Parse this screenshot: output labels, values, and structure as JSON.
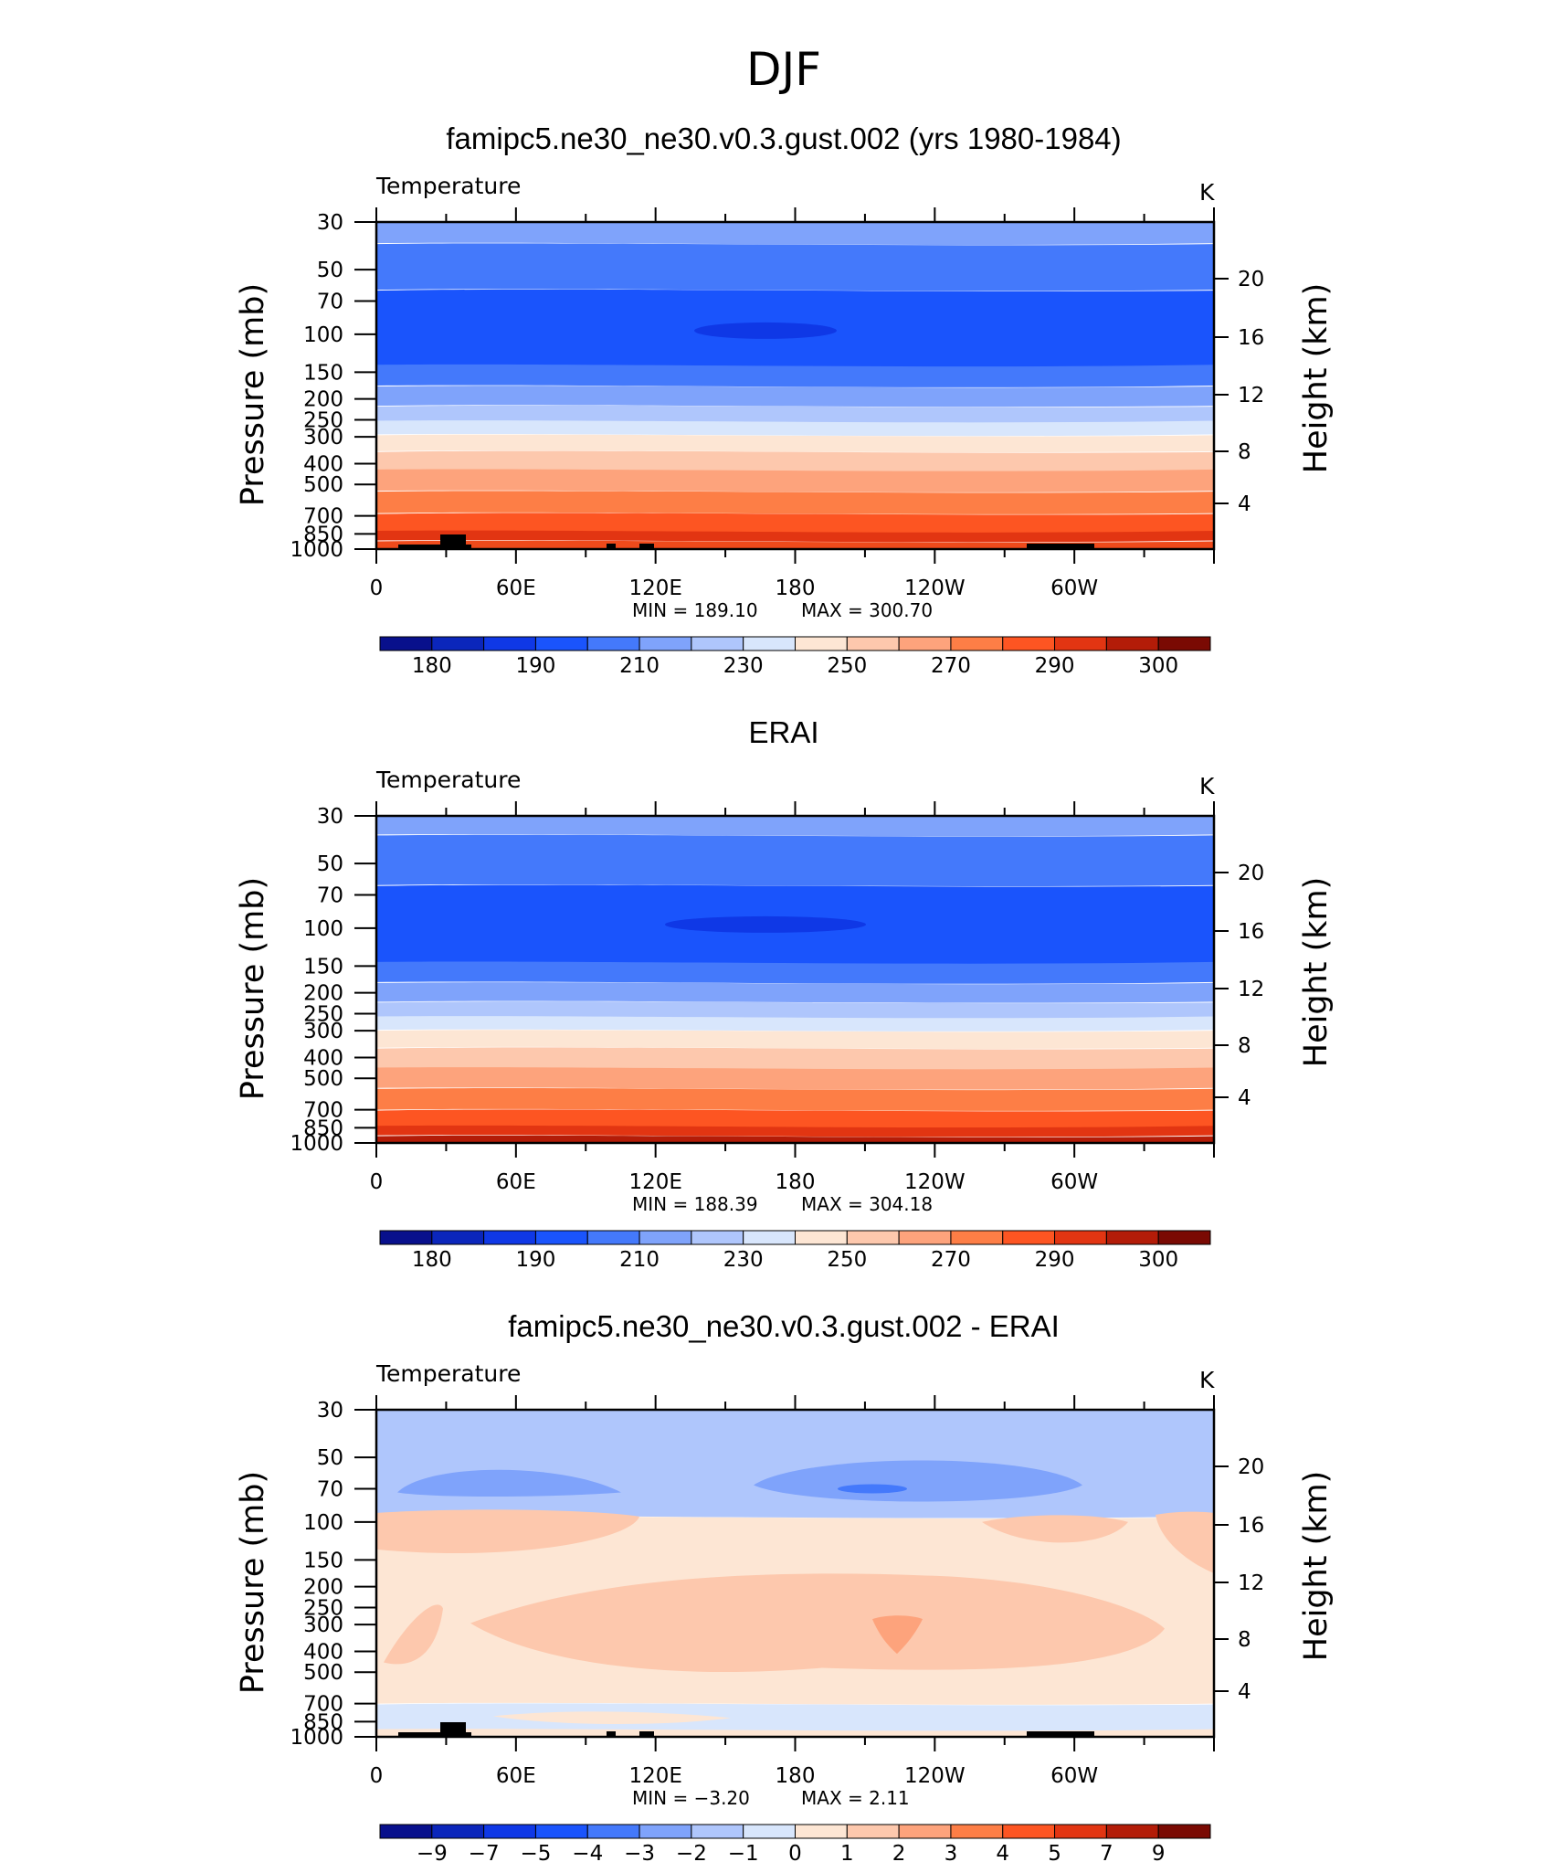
{
  "figure": {
    "title": "DJF"
  },
  "chart_data": [
    {
      "type": "heatmap",
      "title": "famipc5.ne30_ne30.v0.3.gust.002 (yrs 1980-1984)",
      "variable": "Temperature",
      "units": "K",
      "xlabel": "",
      "ylabel": "Pressure (mb)",
      "ylabel_right": "Height (km)",
      "x_ticks": [
        "0",
        "60E",
        "120E",
        "180",
        "120W",
        "60W"
      ],
      "y_ticks": [
        "30",
        "50",
        "70",
        "100",
        "150",
        "200",
        "250",
        "300",
        "400",
        "500",
        "700",
        "850",
        "1000"
      ],
      "y_ticks_right": [
        "20",
        "16",
        "12",
        "8",
        "4"
      ],
      "min_label": "MIN = 189.10",
      "max_label": "MAX = 300.70",
      "min": 189.1,
      "max": 300.7,
      "colorbar_labels": [
        "180",
        "190",
        "210",
        "230",
        "250",
        "270",
        "290",
        "300"
      ],
      "level_bands": [
        {
          "p_top": 30,
          "p_bottom": 38,
          "color": "#7fa3fb"
        },
        {
          "p_top": 38,
          "p_bottom": 62,
          "color": "#4479fb"
        },
        {
          "p_top": 62,
          "p_bottom": 140,
          "color": "#1a54fc"
        },
        {
          "p_top": 140,
          "p_bottom": 175,
          "color": "#4479fb"
        },
        {
          "p_top": 175,
          "p_bottom": 215,
          "color": "#7fa3fb"
        },
        {
          "p_top": 215,
          "p_bottom": 255,
          "color": "#afc6fc"
        },
        {
          "p_top": 255,
          "p_bottom": 295,
          "color": "#d8e6fc"
        },
        {
          "p_top": 295,
          "p_bottom": 350,
          "color": "#fde6d4"
        },
        {
          "p_top": 350,
          "p_bottom": 430,
          "color": "#fdc8ad"
        },
        {
          "p_top": 430,
          "p_bottom": 540,
          "color": "#fda37c"
        },
        {
          "p_top": 540,
          "p_bottom": 680,
          "color": "#fd7e46"
        },
        {
          "p_top": 680,
          "p_bottom": 830,
          "color": "#fd5522"
        },
        {
          "p_top": 830,
          "p_bottom": 920,
          "color": "#e23512"
        },
        {
          "p_top": 920,
          "p_bottom": 1000,
          "color": "#ef4a1b"
        }
      ]
    },
    {
      "type": "heatmap",
      "title": "ERAI",
      "variable": "Temperature",
      "units": "K",
      "xlabel": "",
      "ylabel": "Pressure (mb)",
      "ylabel_right": "Height (km)",
      "x_ticks": [
        "0",
        "60E",
        "120E",
        "180",
        "120W",
        "60W"
      ],
      "y_ticks": [
        "30",
        "50",
        "70",
        "100",
        "150",
        "200",
        "250",
        "300",
        "400",
        "500",
        "700",
        "850",
        "1000"
      ],
      "y_ticks_right": [
        "20",
        "16",
        "12",
        "8",
        "4"
      ],
      "min_label": "MIN = 188.39",
      "max_label": "MAX = 304.18",
      "min": 188.39,
      "max": 304.18,
      "colorbar_labels": [
        "180",
        "190",
        "210",
        "230",
        "250",
        "270",
        "290",
        "300"
      ],
      "level_bands": [
        {
          "p_top": 30,
          "p_bottom": 37,
          "color": "#7fa3fb"
        },
        {
          "p_top": 37,
          "p_bottom": 63,
          "color": "#4479fb"
        },
        {
          "p_top": 63,
          "p_bottom": 145,
          "color": "#1a54fc"
        },
        {
          "p_top": 145,
          "p_bottom": 180,
          "color": "#4479fb"
        },
        {
          "p_top": 180,
          "p_bottom": 220,
          "color": "#7fa3fb"
        },
        {
          "p_top": 220,
          "p_bottom": 260,
          "color": "#afc6fc"
        },
        {
          "p_top": 260,
          "p_bottom": 300,
          "color": "#d8e6fc"
        },
        {
          "p_top": 300,
          "p_bottom": 360,
          "color": "#fde6d4"
        },
        {
          "p_top": 360,
          "p_bottom": 450,
          "color": "#fdc8ad"
        },
        {
          "p_top": 450,
          "p_bottom": 560,
          "color": "#fda37c"
        },
        {
          "p_top": 560,
          "p_bottom": 700,
          "color": "#fd7e46"
        },
        {
          "p_top": 700,
          "p_bottom": 840,
          "color": "#fd5522"
        },
        {
          "p_top": 840,
          "p_bottom": 930,
          "color": "#e23512"
        },
        {
          "p_top": 930,
          "p_bottom": 1000,
          "color": "#b31c08"
        }
      ]
    },
    {
      "type": "heatmap",
      "title": "famipc5.ne30_ne30.v0.3.gust.002 - ERAI",
      "variable": "Temperature",
      "units": "K",
      "xlabel": "",
      "ylabel": "Pressure (mb)",
      "ylabel_right": "Height (km)",
      "x_ticks": [
        "0",
        "60E",
        "120E",
        "180",
        "120W",
        "60W"
      ],
      "y_ticks": [
        "30",
        "50",
        "70",
        "100",
        "150",
        "200",
        "250",
        "300",
        "400",
        "500",
        "700",
        "850",
        "1000"
      ],
      "y_ticks_right": [
        "20",
        "16",
        "12",
        "8",
        "4"
      ],
      "min_label": "MIN = −3.20",
      "max_label": "MAX = 2.11",
      "min": -3.2,
      "max": 2.11,
      "colorbar_labels": [
        "−9",
        "−7",
        "−5",
        "−4",
        "−3",
        "−2",
        "−1",
        "0",
        "1",
        "2",
        "3",
        "4",
        "5",
        "7",
        "9"
      ],
      "level_bands": [
        {
          "p_top": 30,
          "p_bottom": 95,
          "color": "#afc6fc"
        },
        {
          "p_top": 95,
          "p_bottom": 700,
          "color": "#fde6d4"
        },
        {
          "p_top": 700,
          "p_bottom": 930,
          "color": "#d8e6fc"
        },
        {
          "p_top": 930,
          "p_bottom": 1000,
          "color": "#fde6d4"
        }
      ]
    }
  ],
  "colorbar_colors": [
    "#08108c",
    "#0b26bb",
    "#0f38e6",
    "#1a54fc",
    "#4479fb",
    "#7fa3fb",
    "#afc6fc",
    "#d8e6fc",
    "#fde6d4",
    "#fdc8ad",
    "#fda37c",
    "#fd7e46",
    "#fd5522",
    "#e23512",
    "#b31c08",
    "#7a0a03"
  ]
}
